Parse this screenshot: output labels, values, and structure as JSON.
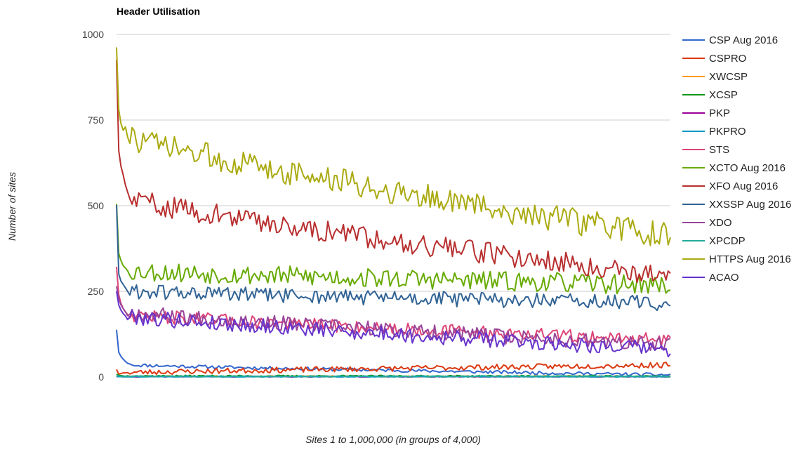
{
  "chart_data": {
    "type": "line",
    "title": "Header Utilisation",
    "xlabel": "Sites 1 to 1,000,000 (in groups of 4,000)",
    "ylabel": "Number of sites",
    "ylim": [
      0,
      1000
    ],
    "yticks": [
      "0",
      "250",
      "500",
      "750",
      "1000"
    ],
    "n_points": 250,
    "series": [
      {
        "name": "CSP Aug 2016",
        "color": "#3366cc",
        "start": 138,
        "head": [
          138,
          72,
          60,
          52,
          45,
          40,
          38,
          35
        ],
        "end": 6,
        "noise": 3,
        "seed": 11
      },
      {
        "name": "CSPRO",
        "color": "#dc3912",
        "start": 22,
        "head": [
          22,
          8,
          10,
          12,
          12,
          13
        ],
        "end": 35,
        "noise": 5,
        "seed": 23
      },
      {
        "name": "XWCSP",
        "color": "#ff9900",
        "start": 3,
        "head": [
          3,
          2,
          2
        ],
        "end": 2,
        "noise": 1,
        "seed": 31
      },
      {
        "name": "XCSP",
        "color": "#109618",
        "start": 8,
        "head": [
          8,
          5,
          4,
          3
        ],
        "end": 2,
        "noise": 1.5,
        "seed": 37
      },
      {
        "name": "PKP",
        "color": "#990099",
        "start": 2,
        "head": [
          2,
          1,
          1
        ],
        "end": 1,
        "noise": 0.6,
        "seed": 41
      },
      {
        "name": "PKPRO",
        "color": "#0099c6",
        "start": 2,
        "head": [
          2,
          1,
          1
        ],
        "end": 1,
        "noise": 0.6,
        "seed": 43
      },
      {
        "name": "STS",
        "color": "#dd4477",
        "start": 322,
        "head": [
          322,
          240,
          215,
          200,
          190,
          182
        ],
        "end": 108,
        "noise": 12,
        "seed": 47
      },
      {
        "name": "XCTO Aug 2016",
        "color": "#66aa00",
        "start": 505,
        "head": [
          505,
          360,
          340,
          325,
          318,
          310
        ],
        "end": 268,
        "noise": 18,
        "seed": 53
      },
      {
        "name": "XFO Aug 2016",
        "color": "#b82e2e",
        "start": 925,
        "head": [
          925,
          660,
          615,
          590,
          560,
          540,
          520
        ],
        "end": 295,
        "noise": 20,
        "seed": 59
      },
      {
        "name": "XXSSP Aug 2016",
        "color": "#316395",
        "start": 502,
        "head": [
          502,
          300,
          280,
          270,
          260,
          250
        ],
        "end": 215,
        "noise": 14,
        "seed": 61
      },
      {
        "name": "XDO",
        "color": "#994499",
        "start": 265,
        "head": [
          265,
          230,
          210,
          200,
          190
        ],
        "end": 92,
        "noise": 14,
        "seed": 67
      },
      {
        "name": "XPCDP",
        "color": "#22aa99",
        "start": 4,
        "head": [
          4,
          3,
          2
        ],
        "end": 2,
        "noise": 1,
        "seed": 71
      },
      {
        "name": "HTTPS Aug 2016",
        "color": "#aaaa11",
        "start": 962,
        "head": [
          962,
          780,
          740,
          720,
          730,
          700
        ],
        "end": 410,
        "noise": 24,
        "seed": 73
      },
      {
        "name": "ACAO",
        "color": "#6633cc",
        "start": 250,
        "head": [
          250,
          210,
          195,
          185,
          178
        ],
        "end": 80,
        "noise": 14,
        "seed": 79
      }
    ]
  }
}
